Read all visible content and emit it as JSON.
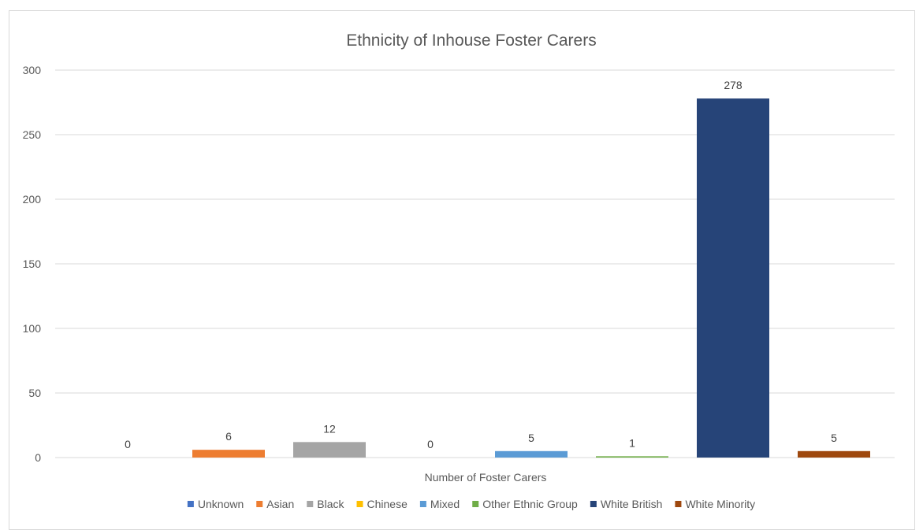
{
  "chart_data": {
    "type": "bar",
    "title": "Ethnicity of Inhouse Foster Carers",
    "xlabel": "Number of Foster Carers",
    "ylabel": "",
    "ylim": [
      0,
      300
    ],
    "yticks": [
      0,
      50,
      100,
      150,
      200,
      250,
      300
    ],
    "grid": true,
    "legend_position": "bottom",
    "series": [
      {
        "name": "Unknown",
        "value": 0,
        "color": "#4472C4"
      },
      {
        "name": "Asian",
        "value": 6,
        "color": "#ED7D31"
      },
      {
        "name": "Black",
        "value": 12,
        "color": "#A5A5A5"
      },
      {
        "name": "Chinese",
        "value": 0,
        "color": "#FFC000"
      },
      {
        "name": "Mixed",
        "value": 5,
        "color": "#5B9BD5"
      },
      {
        "name": "Other Ethnic Group",
        "value": 1,
        "color": "#70AD47"
      },
      {
        "name": "White British",
        "value": 278,
        "color": "#264478"
      },
      {
        "name": "White Minority",
        "value": 5,
        "color": "#9E480E"
      }
    ]
  }
}
